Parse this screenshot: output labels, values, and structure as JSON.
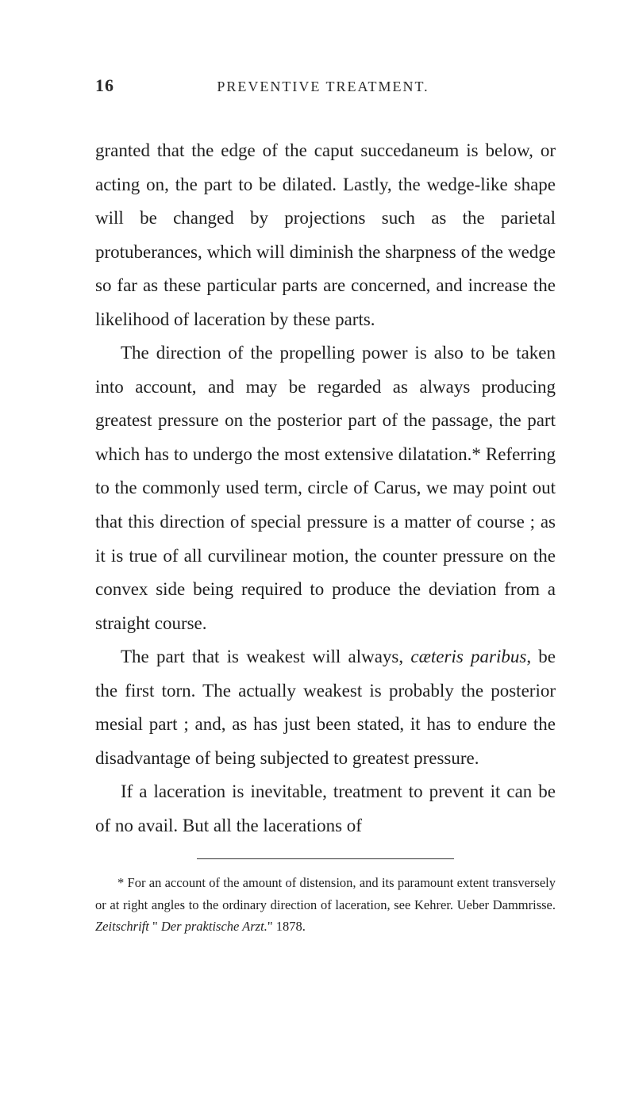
{
  "page_number": "16",
  "running_title": "PREVENTIVE TREATMENT.",
  "paragraphs": {
    "p1": "granted that the edge of the caput succedaneum is below, or acting on, the part to be dilated. Lastly, the wedge-like shape will be changed by projections such as the parietal protuberances, which will diminish the sharpness of the wedge so far as these particular parts are concerned, and increase the likelihood of laceration by these parts.",
    "p2": "The direction of the propelling power is also to be taken into account, and may be regarded as always producing greatest pressure on the posterior part of the passage, the part which has to undergo the most extensive dilatation.* Referring to the commonly used term, circle of Carus, we may point out that this direction of special pressure is a matter of course ; as it is true of all curvilinear motion, the counter pressure on the convex side being required to produce the deviation from a straight course.",
    "p3_a": "The part that is weakest will always, ",
    "p3_i": "cæteris paribus",
    "p3_b": ", be the first torn. The actually weakest is probably the posterior mesial part ; and, as has just been stated, it has to endure the disadvantage of being subjected to greatest pressure.",
    "p4": "If a laceration is inevitable, treatment to prevent it can be of no avail. But all the lacerations of"
  },
  "footnote": {
    "a": "* For an account of the amount of distension, and its paramount extent transversely or at right angles to the ordinary direction of laceration, see Kehrer. Ueber Dammrisse. ",
    "i1": "Zeitschrift",
    "b": " \" ",
    "i2": "Der praktische Arzt.",
    "c": "\" 1878."
  }
}
